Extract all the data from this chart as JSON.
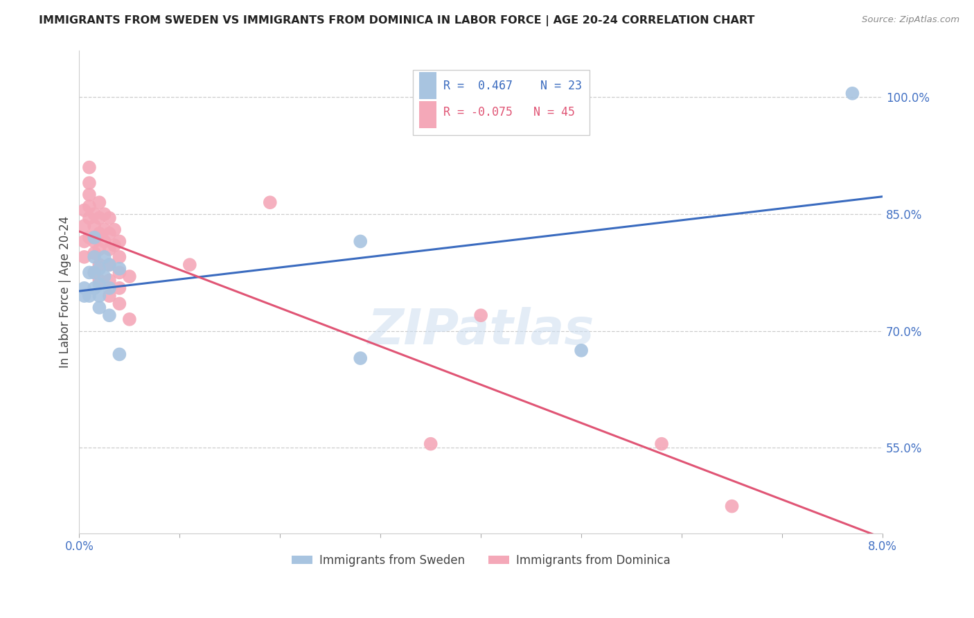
{
  "title": "IMMIGRANTS FROM SWEDEN VS IMMIGRANTS FROM DOMINICA IN LABOR FORCE | AGE 20-24 CORRELATION CHART",
  "source": "Source: ZipAtlas.com",
  "ylabel": "In Labor Force | Age 20-24",
  "r_sweden": 0.467,
  "n_sweden": 23,
  "r_dominica": -0.075,
  "n_dominica": 45,
  "sweden_color": "#a8c4e0",
  "dominica_color": "#f4a8b8",
  "sweden_line_color": "#3a6bbf",
  "dominica_line_color": "#e05575",
  "watermark_text": "ZIPatlas",
  "xlim": [
    0.0,
    0.08
  ],
  "ylim": [
    0.44,
    1.06
  ],
  "yticks": [
    0.55,
    0.7,
    0.85,
    1.0
  ],
  "ytick_labels": [
    "55.0%",
    "70.0%",
    "85.0%",
    "100.0%"
  ],
  "sweden_x": [
    0.0005,
    0.0005,
    0.001,
    0.001,
    0.0015,
    0.0015,
    0.0015,
    0.0015,
    0.002,
    0.002,
    0.002,
    0.002,
    0.0025,
    0.0025,
    0.003,
    0.003,
    0.003,
    0.004,
    0.004,
    0.028,
    0.028,
    0.05,
    0.077
  ],
  "sweden_y": [
    0.755,
    0.745,
    0.775,
    0.745,
    0.82,
    0.795,
    0.775,
    0.755,
    0.78,
    0.76,
    0.745,
    0.73,
    0.795,
    0.77,
    0.785,
    0.755,
    0.72,
    0.78,
    0.67,
    0.815,
    0.665,
    0.675,
    1.005
  ],
  "dominica_x": [
    0.0005,
    0.0005,
    0.0005,
    0.0005,
    0.001,
    0.001,
    0.001,
    0.001,
    0.001,
    0.001,
    0.0015,
    0.0015,
    0.0015,
    0.0015,
    0.0015,
    0.002,
    0.002,
    0.002,
    0.002,
    0.002,
    0.002,
    0.0025,
    0.0025,
    0.0025,
    0.003,
    0.003,
    0.003,
    0.003,
    0.003,
    0.003,
    0.0035,
    0.0035,
    0.004,
    0.004,
    0.004,
    0.004,
    0.004,
    0.005,
    0.005,
    0.011,
    0.019,
    0.035,
    0.04,
    0.058,
    0.065
  ],
  "dominica_y": [
    0.855,
    0.835,
    0.815,
    0.795,
    0.91,
    0.89,
    0.875,
    0.86,
    0.845,
    0.82,
    0.85,
    0.835,
    0.815,
    0.8,
    0.775,
    0.865,
    0.845,
    0.825,
    0.805,
    0.785,
    0.765,
    0.85,
    0.83,
    0.815,
    0.845,
    0.825,
    0.805,
    0.785,
    0.765,
    0.745,
    0.83,
    0.81,
    0.815,
    0.795,
    0.775,
    0.755,
    0.735,
    0.77,
    0.715,
    0.785,
    0.865,
    0.555,
    0.72,
    0.555,
    0.475
  ]
}
